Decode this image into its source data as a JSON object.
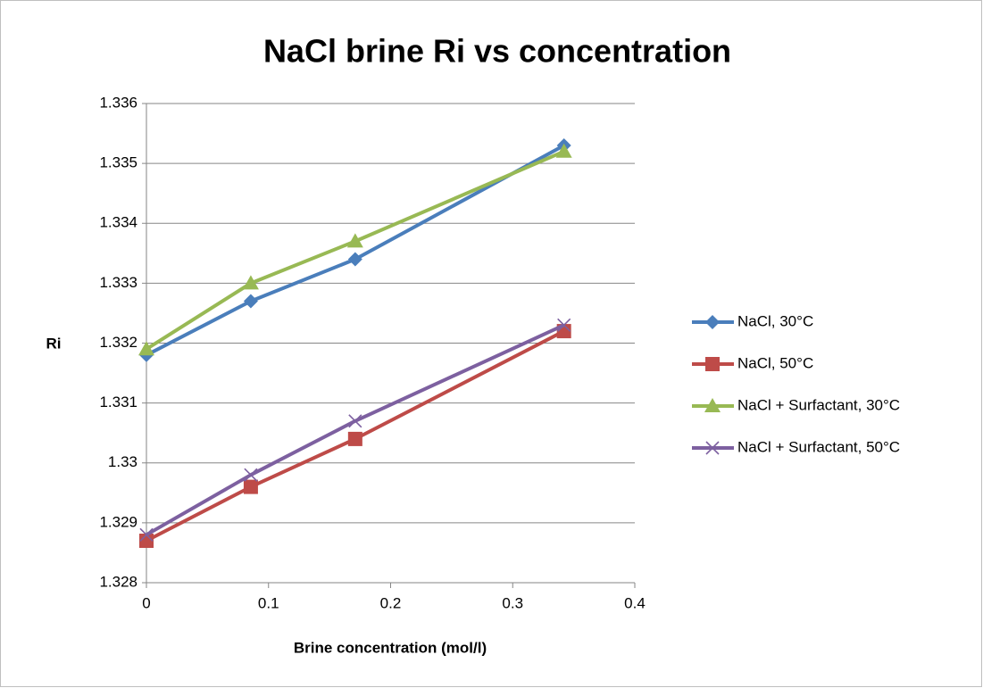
{
  "chart_data": {
    "type": "line",
    "title": "NaCl brine Ri vs concentration",
    "xlabel": "Brine concentration (mol/l)",
    "ylabel": "Ri",
    "x": [
      0,
      0.0855,
      0.171,
      0.342
    ],
    "series": [
      {
        "name": "NaCl, 30°C",
        "color": "#4a7ebb",
        "marker": "diamond",
        "values": [
          1.3318,
          1.3327,
          1.3334,
          1.3353
        ]
      },
      {
        "name": "NaCl, 50°C",
        "color": "#be4b48",
        "marker": "square",
        "values": [
          1.3287,
          1.3296,
          1.3304,
          1.3322
        ]
      },
      {
        "name": "NaCl + Surfactant, 30°C",
        "color": "#98b954",
        "marker": "triangle",
        "values": [
          1.3319,
          1.333,
          1.3337,
          1.3352
        ]
      },
      {
        "name": "NaCl + Surfactant, 50°C",
        "color": "#7d60a0",
        "marker": "x",
        "values": [
          1.3288,
          1.3298,
          1.3307,
          1.3323
        ]
      }
    ],
    "xlim": [
      0,
      0.4
    ],
    "xticks": [
      0,
      0.1,
      0.2,
      0.3,
      0.4
    ],
    "ylim": [
      1.328,
      1.336
    ],
    "yticks": [
      1.328,
      1.329,
      1.33,
      1.331,
      1.332,
      1.333,
      1.334,
      1.335,
      1.336
    ],
    "grid": true,
    "legend": "right"
  }
}
